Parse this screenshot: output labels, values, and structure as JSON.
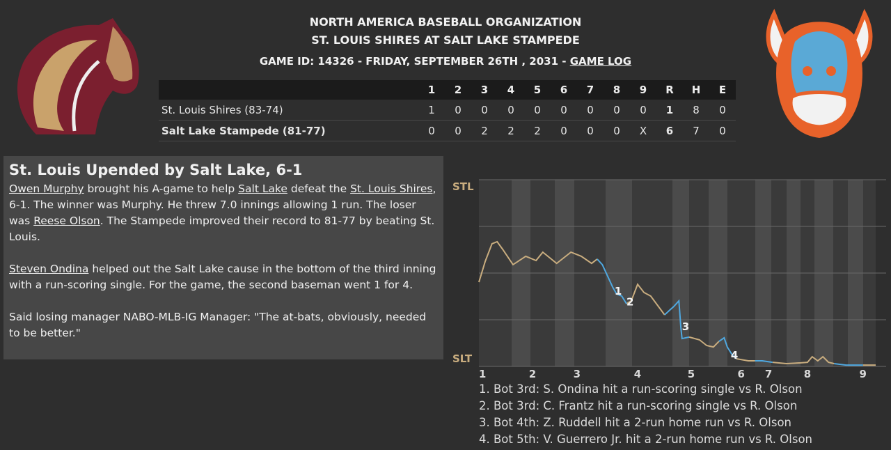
{
  "header": {
    "title": "NORTH AMERICA BASEBALL ORGANIZATION",
    "subtitle": "ST. LOUIS SHIRES AT SALT LAKE STAMPEDE",
    "game_info": "GAME ID: 14326 - FRIDAY, SEPTEMBER 26TH , 2031 - ",
    "game_log_link": "GAME LOG"
  },
  "linescore": {
    "header": [
      "1",
      "2",
      "3",
      "4",
      "5",
      "6",
      "7",
      "8",
      "9",
      "R",
      "H",
      "E"
    ],
    "rows": [
      [
        "St. Louis Shires (83-74)",
        "1",
        "0",
        "0",
        "0",
        "0",
        "0",
        "0",
        "0",
        "0",
        "1",
        "8",
        "0"
      ],
      [
        "Salt Lake Stampede (81-77)",
        "0",
        "0",
        "2",
        "2",
        "2",
        "0",
        "0",
        "0",
        "X",
        "6",
        "7",
        "0"
      ]
    ]
  },
  "article": {
    "title": "St. Louis Upended by Salt Lake, 6-1",
    "paragraphs": [
      [
        {
          "text": "Owen Murphy",
          "link": true
        },
        " brought his A-game to help ",
        {
          "text": "Salt Lake",
          "link": true
        },
        " defeat the ",
        {
          "text": "St. Louis Shires",
          "link": true
        },
        ", 6-1. The winner was Murphy. He threw 7.0 innings allowing 1 run. The loser was ",
        {
          "text": "Reese Olson",
          "link": true
        },
        ". The Stampede improved their record to 81-77 by beating St. Louis."
      ],
      [
        {
          "text": "Steven Ondina",
          "link": true
        },
        " helped out the Salt Lake cause in the bottom of the third inning with a run-scoring single. For the game, the second baseman went 1 for 4."
      ],
      [
        "Said losing manager NABO-MLB-IG Manager: \"The at-bats, obviously, needed to be better.\""
      ]
    ]
  },
  "win_probability_chart": {
    "type": "line",
    "xlim": [
      0,
      100
    ],
    "ylim": [
      0,
      100
    ],
    "xticks": [
      {
        "value": 0.9,
        "label": "1"
      },
      {
        "value": 13.5,
        "label": "2"
      },
      {
        "value": 24.7,
        "label": "3"
      },
      {
        "value": 40,
        "label": "4"
      },
      {
        "value": 53.5,
        "label": "5"
      },
      {
        "value": 66.1,
        "label": "6"
      },
      {
        "value": 73,
        "label": "7"
      },
      {
        "value": 82.8,
        "label": "8"
      },
      {
        "value": 96.8,
        "label": "9"
      }
    ],
    "yticks": [
      {
        "value": 0,
        "label": "SLT"
      },
      {
        "value": 25,
        "label": null
      },
      {
        "value": 50,
        "label": null
      },
      {
        "value": 75,
        "label": null
      },
      {
        "value": 100,
        "label": "STL"
      }
    ],
    "grid": true,
    "x": [
      0,
      1.6,
      3.3,
      4.6,
      6.0,
      8.6,
      11.8,
      14.4,
      16.1,
      19.6,
      23.2,
      25.8,
      28.4,
      29.8,
      31.1,
      33.7,
      34.7,
      36.0,
      37.2,
      38.4,
      40.0,
      41.6,
      43.3,
      46.8,
      48.1,
      49.1,
      50.4,
      50.9,
      51.2,
      53.0,
      55.6,
      57.4,
      59.1,
      60.5,
      61.8,
      62.6,
      63.9,
      64.9,
      67.9,
      69.6,
      71.4,
      74.0,
      77.5,
      81.1,
      82.8,
      84.0,
      85.4,
      86.7,
      88.1,
      89.5,
      92.5,
      96.8,
      100
    ],
    "series": [
      {
        "color": "#c9ad7f",
        "values": [
          45.1,
          56.3,
          65.7,
          66.8,
          62.7,
          54.5,
          59.0,
          56.7,
          61.2,
          55.2,
          61.2,
          59.0,
          55.2,
          57.5,
          null,
          null,
          null,
          null,
          33.6,
          35.1,
          44.0,
          39.6,
          37.7,
          27.6,
          null,
          null,
          null,
          null,
          null,
          15.7,
          14.2,
          11.2,
          10.4,
          13.4,
          null,
          null,
          null,
          4.1,
          3.0,
          3.0,
          null,
          2.2,
          1.5,
          1.9,
          2.2,
          5.2,
          3.0,
          5.2,
          2.2,
          1.5,
          null,
          0.7,
          0.7
        ]
      },
      {
        "color": "#4fa8e0",
        "values": [
          null,
          null,
          null,
          null,
          null,
          null,
          null,
          null,
          null,
          null,
          null,
          null,
          null,
          57.5,
          54.5,
          42.5,
          38.8,
          37.7,
          33.6,
          null,
          null,
          null,
          null,
          27.6,
          30.2,
          32.1,
          35.1,
          20.9,
          14.9,
          15.7,
          null,
          null,
          null,
          13.4,
          15.3,
          10.4,
          6.0,
          4.1,
          null,
          3.0,
          3.0,
          2.2,
          null,
          null,
          null,
          null,
          null,
          null,
          null,
          1.5,
          0.7,
          0.7,
          null
        ]
      }
    ],
    "annotations": [
      {
        "label": "1",
        "x": 35.1,
        "value": 40.3
      },
      {
        "label": "2",
        "x": 38.1,
        "value": 34.5
      },
      {
        "label": "3",
        "x": 52.1,
        "value": 21.3
      },
      {
        "label": "4",
        "x": 64.4,
        "value": 6.0
      }
    ],
    "notes": [
      "1. Bot 3rd: S. Ondina hit a run-scoring single vs R. Olson",
      "2. Bot 3rd: C. Frantz hit a run-scoring single vs R. Olson",
      "3. Bot 4th: Z. Ruddell hit a 2-run home run vs R. Olson",
      "4. Bot 5th: V. Guerrero Jr. hit a 2-run home run vs R. Olson"
    ]
  }
}
